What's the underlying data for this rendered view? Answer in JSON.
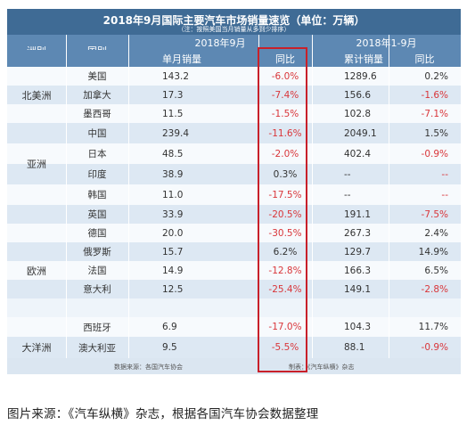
{
  "table": {
    "title": "2018年9月国际主要汽车市场销量速览（单位：万辆）",
    "note": "（注：按照美国当月销量从多到少排序）",
    "group_headers": {
      "month": "2018年9月",
      "ytd": "2018年1-9月"
    },
    "headers": {
      "region": "洲别",
      "country": "国别",
      "monthly": "单月销量",
      "yoy_month": "同比",
      "cumulative": "累计销量",
      "yoy_ytd": "同比"
    },
    "regions": [
      {
        "name": "北美洲"
      },
      {
        "name": "亚洲"
      },
      {
        "name": "欧洲"
      },
      {
        "name": "大洋洲"
      }
    ],
    "rows": [
      {
        "country": "美国",
        "monthly": "143.2",
        "yoy_month": "-6.0%",
        "cumulative": "1289.6",
        "yoy_ytd": "0.2%"
      },
      {
        "country": "加拿大",
        "monthly": "17.3",
        "yoy_month": "-7.4%",
        "cumulative": "156.6",
        "yoy_ytd": "-1.6%"
      },
      {
        "country": "墨西哥",
        "monthly": "11.5",
        "yoy_month": "-1.5%",
        "cumulative": "102.8",
        "yoy_ytd": "-7.1%"
      },
      {
        "country": "中国",
        "monthly": "239.4",
        "yoy_month": "-11.6%",
        "cumulative": "2049.1",
        "yoy_ytd": "1.5%"
      },
      {
        "country": "日本",
        "monthly": "48.5",
        "yoy_month": "-2.0%",
        "cumulative": "402.4",
        "yoy_ytd": "-0.9%"
      },
      {
        "country": "印度",
        "monthly": "38.9",
        "yoy_month": "0.3%",
        "cumulative": "--",
        "yoy_ytd": "--"
      },
      {
        "country": "韩国",
        "monthly": "11.0",
        "yoy_month": "-17.5%",
        "cumulative": "--",
        "yoy_ytd": "--"
      },
      {
        "country": "英国",
        "monthly": "33.9",
        "yoy_month": "-20.5%",
        "cumulative": "191.1",
        "yoy_ytd": "-7.5%"
      },
      {
        "country": "德国",
        "monthly": "20.0",
        "yoy_month": "-30.5%",
        "cumulative": "267.3",
        "yoy_ytd": "2.4%"
      },
      {
        "country": "俄罗斯",
        "monthly": "15.7",
        "yoy_month": "6.2%",
        "cumulative": "129.7",
        "yoy_ytd": "14.9%"
      },
      {
        "country": "法国",
        "monthly": "14.9",
        "yoy_month": "-12.8%",
        "cumulative": "166.3",
        "yoy_ytd": "6.5%"
      },
      {
        "country": "意大利",
        "monthly": "12.5",
        "yoy_month": "-25.4%",
        "cumulative": "149.1",
        "yoy_ytd": "-2.8%"
      },
      {
        "country": "西班牙",
        "monthly": "6.9",
        "yoy_month": "-17.0%",
        "cumulative": "104.3",
        "yoy_ytd": "11.7%"
      },
      {
        "country": "澳大利亚",
        "monthly": "9.5",
        "yoy_month": "-5.5%",
        "cumulative": "88.1",
        "yoy_ytd": "-0.9%"
      }
    ],
    "footer": {
      "source": "数据来源：各国汽车协会",
      "editor": "制表：《汽车纵横》杂志"
    }
  },
  "caption": "图片来源：《汽车纵横》杂志，根据各国汽车协会数据整理",
  "colors": {
    "header": "#3f6b95",
    "subheader": "#5d88b3",
    "negative": "#d9363a",
    "highlight_box": "#c8202a"
  }
}
